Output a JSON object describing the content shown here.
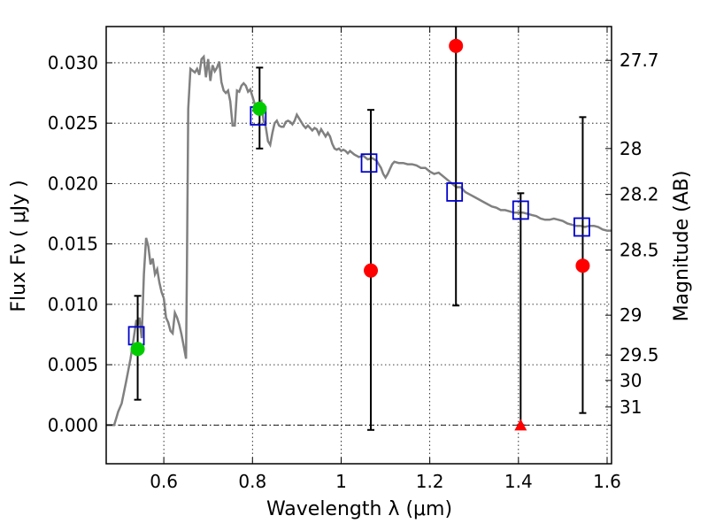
{
  "chart_data": {
    "type": "scatter",
    "xlabel": "Wavelength  λ (μm)",
    "ylabel": "Flux  Fν  ( μJy )",
    "y2label": "Magnitude (AB)",
    "xlim": [
      0.47,
      1.61
    ],
    "ylim": [
      -0.0032,
      0.033
    ],
    "x_ticks": [
      0.6,
      0.8,
      1.0,
      1.2,
      1.4,
      1.6
    ],
    "x_tick_labels": [
      "0.6",
      "0.8",
      "1",
      "1.2",
      "1.4",
      "1.6"
    ],
    "y_ticks": [
      0.0,
      0.005,
      0.01,
      0.015,
      0.02,
      0.025,
      0.03
    ],
    "y_tick_labels": [
      "0.000",
      "0.005",
      "0.010",
      "0.015",
      "0.020",
      "0.025",
      "0.030"
    ],
    "mag_ticks": [
      {
        "label": "27.7",
        "flux": 0.0302
      },
      {
        "label": "28",
        "flux": 0.0229
      },
      {
        "label": "28.2",
        "flux": 0.0191
      },
      {
        "label": "28.5",
        "flux": 0.0145
      },
      {
        "label": "29",
        "flux": 0.0091
      },
      {
        "label": "29.5",
        "flux": 0.0058
      },
      {
        "label": "30",
        "flux": 0.0037
      },
      {
        "label": "31",
        "flux": 0.0015
      }
    ],
    "zero_line": 0.0,
    "series": [
      {
        "name": "model_sed",
        "color": "#808080",
        "points": [
          [
            0.47,
            0.0
          ],
          [
            0.488,
            0.0
          ],
          [
            0.493,
            0.0006
          ],
          [
            0.497,
            0.0011
          ],
          [
            0.505,
            0.0018
          ],
          [
            0.515,
            0.0036
          ],
          [
            0.525,
            0.0055
          ],
          [
            0.532,
            0.0072
          ],
          [
            0.538,
            0.0087
          ],
          [
            0.541,
            0.0083
          ],
          [
            0.545,
            0.0089
          ],
          [
            0.55,
            0.0072
          ],
          [
            0.555,
            0.0125
          ],
          [
            0.56,
            0.0155
          ],
          [
            0.565,
            0.0148
          ],
          [
            0.57,
            0.0133
          ],
          [
            0.575,
            0.0138
          ],
          [
            0.58,
            0.0125
          ],
          [
            0.585,
            0.0129
          ],
          [
            0.59,
            0.0118
          ],
          [
            0.595,
            0.011
          ],
          [
            0.6,
            0.0105
          ],
          [
            0.605,
            0.0089
          ],
          [
            0.61,
            0.0085
          ],
          [
            0.615,
            0.0078
          ],
          [
            0.62,
            0.0076
          ],
          [
            0.625,
            0.0093
          ],
          [
            0.63,
            0.0089
          ],
          [
            0.635,
            0.0083
          ],
          [
            0.64,
            0.0075
          ],
          [
            0.645,
            0.0065
          ],
          [
            0.65,
            0.0055
          ],
          [
            0.652,
            0.0128
          ],
          [
            0.655,
            0.0262
          ],
          [
            0.66,
            0.0295
          ],
          [
            0.67,
            0.0292
          ],
          [
            0.675,
            0.0295
          ],
          [
            0.68,
            0.029
          ],
          [
            0.685,
            0.0303
          ],
          [
            0.69,
            0.0305
          ],
          [
            0.695,
            0.0288
          ],
          [
            0.7,
            0.0303
          ],
          [
            0.705,
            0.0285
          ],
          [
            0.71,
            0.0298
          ],
          [
            0.715,
            0.0293
          ],
          [
            0.72,
            0.0296
          ],
          [
            0.725,
            0.0301
          ],
          [
            0.73,
            0.0284
          ],
          [
            0.735,
            0.0277
          ],
          [
            0.74,
            0.0275
          ],
          [
            0.745,
            0.0277
          ],
          [
            0.75,
            0.0268
          ],
          [
            0.755,
            0.0248
          ],
          [
            0.76,
            0.0248
          ],
          [
            0.765,
            0.0277
          ],
          [
            0.77,
            0.0276
          ],
          [
            0.775,
            0.0281
          ],
          [
            0.78,
            0.0283
          ],
          [
            0.785,
            0.0281
          ],
          [
            0.79,
            0.0276
          ],
          [
            0.795,
            0.0278
          ],
          [
            0.8,
            0.0272
          ],
          [
            0.805,
            0.0266
          ],
          [
            0.81,
            0.0262
          ],
          [
            0.815,
            0.0266
          ],
          [
            0.82,
            0.0268
          ],
          [
            0.825,
            0.0252
          ],
          [
            0.83,
            0.0247
          ],
          [
            0.835,
            0.0235
          ],
          [
            0.84,
            0.0232
          ],
          [
            0.845,
            0.0242
          ],
          [
            0.85,
            0.025
          ],
          [
            0.855,
            0.0252
          ],
          [
            0.86,
            0.0248
          ],
          [
            0.865,
            0.0247
          ],
          [
            0.87,
            0.0247
          ],
          [
            0.875,
            0.0251
          ],
          [
            0.88,
            0.0252
          ],
          [
            0.885,
            0.0251
          ],
          [
            0.89,
            0.0249
          ],
          [
            0.895,
            0.0252
          ],
          [
            0.9,
            0.0257
          ],
          [
            0.905,
            0.0254
          ],
          [
            0.91,
            0.0251
          ],
          [
            0.915,
            0.0248
          ],
          [
            0.92,
            0.0246
          ],
          [
            0.925,
            0.0248
          ],
          [
            0.93,
            0.0246
          ],
          [
            0.935,
            0.0244
          ],
          [
            0.94,
            0.0246
          ],
          [
            0.945,
            0.0245
          ],
          [
            0.95,
            0.0241
          ],
          [
            0.955,
            0.0245
          ],
          [
            0.96,
            0.0242
          ],
          [
            0.965,
            0.0239
          ],
          [
            0.97,
            0.0242
          ],
          [
            0.975,
            0.0239
          ],
          [
            0.98,
            0.0233
          ],
          [
            0.985,
            0.0229
          ],
          [
            0.99,
            0.0228
          ],
          [
            0.995,
            0.0229
          ],
          [
            1.0,
            0.0227
          ],
          [
            1.005,
            0.0228
          ],
          [
            1.01,
            0.0227
          ],
          [
            1.015,
            0.0225
          ],
          [
            1.02,
            0.0227
          ],
          [
            1.03,
            0.0224
          ],
          [
            1.04,
            0.0222
          ],
          [
            1.05,
            0.0223
          ],
          [
            1.06,
            0.022
          ],
          [
            1.07,
            0.0221
          ],
          [
            1.08,
            0.0219
          ],
          [
            1.085,
            0.0216
          ],
          [
            1.09,
            0.0213
          ],
          [
            1.095,
            0.0208
          ],
          [
            1.1,
            0.0205
          ],
          [
            1.105,
            0.0208
          ],
          [
            1.11,
            0.0212
          ],
          [
            1.115,
            0.0216
          ],
          [
            1.12,
            0.0218
          ],
          [
            1.13,
            0.0217
          ],
          [
            1.14,
            0.0217
          ],
          [
            1.15,
            0.0216
          ],
          [
            1.16,
            0.0216
          ],
          [
            1.17,
            0.0215
          ],
          [
            1.18,
            0.0213
          ],
          [
            1.19,
            0.0213
          ],
          [
            1.2,
            0.021
          ],
          [
            1.21,
            0.0208
          ],
          [
            1.22,
            0.0209
          ],
          [
            1.23,
            0.0206
          ],
          [
            1.24,
            0.0203
          ],
          [
            1.25,
            0.02
          ],
          [
            1.26,
            0.0197
          ],
          [
            1.27,
            0.0197
          ],
          [
            1.28,
            0.0193
          ],
          [
            1.29,
            0.0191
          ],
          [
            1.3,
            0.0189
          ],
          [
            1.31,
            0.0187
          ],
          [
            1.32,
            0.0185
          ],
          [
            1.33,
            0.0183
          ],
          [
            1.34,
            0.0181
          ],
          [
            1.35,
            0.018
          ],
          [
            1.36,
            0.0178
          ],
          [
            1.37,
            0.0178
          ],
          [
            1.38,
            0.0177
          ],
          [
            1.39,
            0.0176
          ],
          [
            1.4,
            0.0176
          ],
          [
            1.41,
            0.0176
          ],
          [
            1.42,
            0.0175
          ],
          [
            1.43,
            0.0174
          ],
          [
            1.44,
            0.0173
          ],
          [
            1.45,
            0.0171
          ],
          [
            1.46,
            0.017
          ],
          [
            1.47,
            0.017
          ],
          [
            1.48,
            0.0171
          ],
          [
            1.49,
            0.017
          ],
          [
            1.5,
            0.0169
          ],
          [
            1.51,
            0.0167
          ],
          [
            1.52,
            0.0166
          ],
          [
            1.53,
            0.0165
          ],
          [
            1.54,
            0.0165
          ],
          [
            1.55,
            0.0164
          ],
          [
            1.56,
            0.0165
          ],
          [
            1.57,
            0.0165
          ],
          [
            1.58,
            0.0164
          ],
          [
            1.59,
            0.0162
          ],
          [
            1.6,
            0.0161
          ],
          [
            1.61,
            0.0161
          ]
        ]
      },
      {
        "name": "model_band_flux",
        "marker": "open-square",
        "color": "#0000cc",
        "x": [
          0.538,
          0.813,
          1.063,
          1.256,
          1.405,
          1.543
        ],
        "y": [
          0.0074,
          0.0256,
          0.0217,
          0.0193,
          0.0178,
          0.0164
        ]
      },
      {
        "name": "detections",
        "marker": "circle",
        "color": "#00cc00",
        "x": [
          0.541,
          0.816
        ],
        "y": [
          0.0063,
          0.0262
        ],
        "yerr_low": [
          0.0021,
          0.0229
        ],
        "yerr_high": [
          0.0107,
          0.0296
        ]
      },
      {
        "name": "non_detections",
        "marker": "circle",
        "color": "#ff0000",
        "x": [
          1.067,
          1.259,
          1.545
        ],
        "y": [
          0.0128,
          0.0314,
          0.0132
        ],
        "yerr_low": [
          -0.0004,
          0.0099,
          0.001
        ],
        "yerr_high": [
          0.0261,
          0.033,
          0.0255
        ]
      },
      {
        "name": "upper_limit",
        "marker": "triangle",
        "color": "#ff0000",
        "x": [
          1.405
        ],
        "y": [
          0.0
        ],
        "yerr_low": [
          0.0
        ],
        "yerr_high": [
          0.0192
        ]
      }
    ]
  }
}
